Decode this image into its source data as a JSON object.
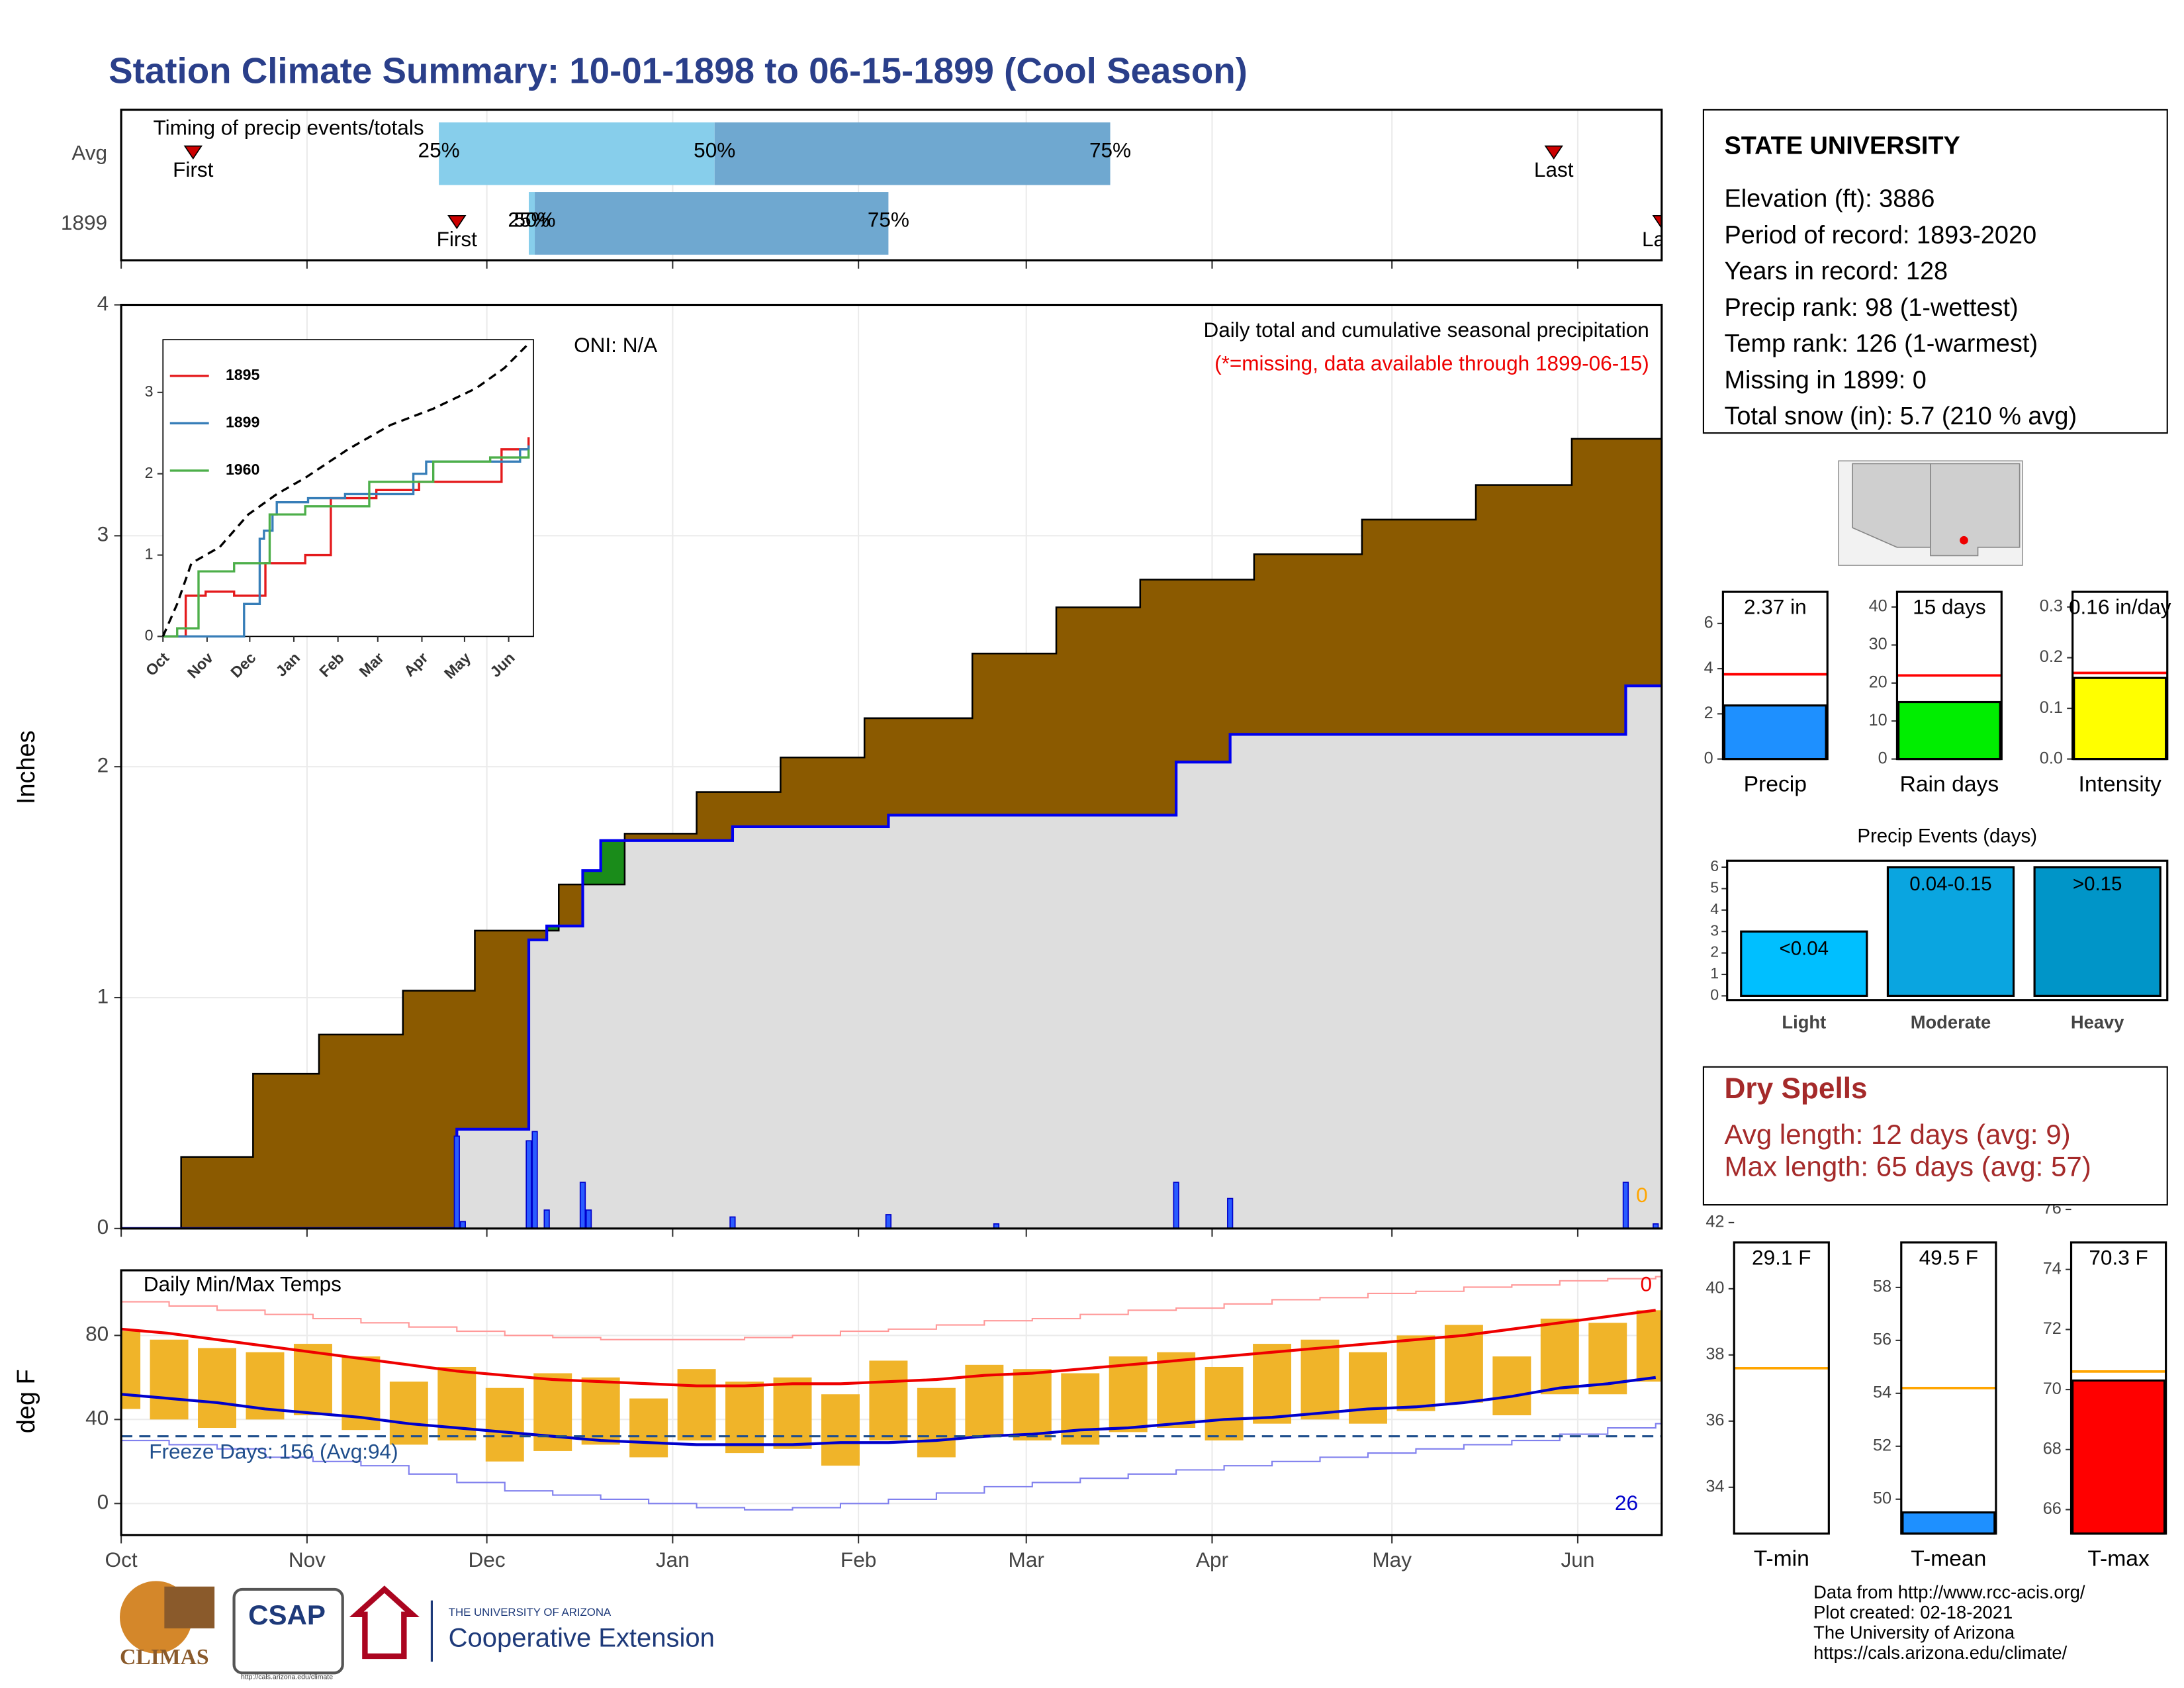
{
  "title": "Station Climate Summary: 10-01-1898 to 06-15-1899 (Cool Season)",
  "chart_data": [
    {
      "type": "timing",
      "title": "Timing of precip events/totals",
      "categories": [
        "Avg",
        "1899"
      ],
      "series": [
        {
          "name": "First",
          "color": "#cc0000",
          "values": [
            12,
            56
          ]
        },
        {
          "name": "25%",
          "color": "#87ceeb",
          "values": [
            53,
            68
          ]
        },
        {
          "name": "50%",
          "color": "#6fa8d0",
          "values": [
            99,
            69
          ]
        },
        {
          "name": "75%",
          "color": "#6fa8d0",
          "values": [
            165,
            128
          ]
        },
        {
          "name": "Last",
          "color": "#cc0000",
          "values": [
            239,
            257
          ]
        }
      ],
      "xlim": [
        0,
        257
      ],
      "xticks": [
        0,
        31,
        61,
        92,
        123,
        151,
        182,
        212,
        243
      ],
      "grid": true
    },
    {
      "type": "cumulative_precip",
      "ylabel": "Inches",
      "oni": "ONI: N/A",
      "subtitle": "Daily total and cumulative seasonal precipitation",
      "note": "(*=missing, data available through 1899-06-15)",
      "missing_days": 0,
      "xlim": [
        0,
        257
      ],
      "xticks": [
        0,
        31,
        61,
        92,
        123,
        151,
        182,
        212,
        243
      ],
      "ylim": [
        0,
        4
      ],
      "yticks": [
        0,
        1,
        2,
        3,
        4
      ],
      "grid": true,
      "average": {
        "color": "#8b5a00",
        "x": [
          0,
          10,
          22,
          33,
          47,
          59,
          73,
          84,
          96,
          110,
          124,
          142,
          156,
          170,
          189,
          207,
          226,
          242,
          257
        ],
        "values": [
          0,
          0.31,
          0.67,
          0.84,
          1.03,
          1.29,
          1.49,
          1.71,
          1.89,
          2.04,
          2.21,
          2.49,
          2.69,
          2.81,
          2.92,
          3.07,
          3.22,
          3.42,
          3.65
        ]
      },
      "cumulative": {
        "color": "#0000ee",
        "fill": "#dedede",
        "above_color": "#1a8c1a",
        "x": [
          0,
          56,
          68,
          71,
          77,
          80,
          102,
          128,
          176,
          185,
          251
        ],
        "values": [
          0,
          0.43,
          1.25,
          1.31,
          1.55,
          1.68,
          1.74,
          1.79,
          2.02,
          2.14,
          2.35
        ]
      },
      "daily": {
        "color": "#2a5cff",
        "x": [
          56,
          57,
          68,
          69,
          71,
          77,
          78,
          102,
          128,
          146,
          176,
          185,
          251,
          256
        ],
        "values": [
          0.4,
          0.03,
          0.38,
          0.42,
          0.08,
          0.2,
          0.08,
          0.05,
          0.06,
          0.02,
          0.2,
          0.13,
          0.2,
          0.02
        ]
      }
    },
    {
      "type": "inset_lines",
      "xlim": [
        0,
        257
      ],
      "xticks": [
        {
          "value": 0,
          "label": "Oct"
        },
        {
          "value": 31,
          "label": "Nov"
        },
        {
          "value": 61,
          "label": "Dec"
        },
        {
          "value": 92,
          "label": "Jan"
        },
        {
          "value": 123,
          "label": "Feb"
        },
        {
          "value": 151,
          "label": "Mar"
        },
        {
          "value": 182,
          "label": "Apr"
        },
        {
          "value": 212,
          "label": "May"
        },
        {
          "value": 243,
          "label": "Jun"
        }
      ],
      "ylim": [
        0,
        3.7
      ],
      "yticks": [
        0,
        1,
        2,
        3
      ],
      "average": {
        "color": "#000000",
        "x": [
          0,
          10,
          20,
          40,
          60,
          80,
          100,
          130,
          160,
          190,
          220,
          240,
          257
        ],
        "values": [
          0,
          0.4,
          0.9,
          1.1,
          1.5,
          1.75,
          1.95,
          2.3,
          2.6,
          2.8,
          3.05,
          3.3,
          3.6
        ]
      },
      "series": [
        {
          "name": "1895",
          "color": "#e41a1c",
          "x": [
            0,
            15,
            16,
            30,
            50,
            72,
            100,
            118,
            150,
            180,
            235,
            238,
            257
          ],
          "values": [
            0,
            0,
            0.5,
            0.55,
            0.5,
            0.9,
            1.0,
            1.7,
            1.8,
            1.9,
            1.9,
            2.3,
            2.45
          ]
        },
        {
          "name": "1899",
          "color": "#377eb8",
          "x": [
            0,
            56,
            57,
            68,
            71,
            77,
            80,
            102,
            128,
            176,
            185,
            251,
            257
          ],
          "values": [
            0,
            0,
            0.4,
            1.2,
            1.3,
            1.5,
            1.65,
            1.7,
            1.75,
            2.0,
            2.15,
            2.3,
            2.35
          ]
        },
        {
          "name": "1960",
          "color": "#4daf4a",
          "x": [
            0,
            10,
            25,
            50,
            70,
            75,
            100,
            145,
            190,
            230,
            257
          ],
          "values": [
            0,
            0.1,
            0.8,
            0.9,
            0.9,
            1.5,
            1.6,
            1.9,
            2.15,
            2.2,
            2.3
          ]
        }
      ]
    },
    {
      "type": "temps",
      "title": "Daily Min/Max Temps",
      "ylabel": "deg F",
      "xlim": [
        0,
        257
      ],
      "xticks": [
        {
          "value": 0,
          "label": "Oct"
        },
        {
          "value": 31,
          "label": "Nov"
        },
        {
          "value": 61,
          "label": "Dec"
        },
        {
          "value": 92,
          "label": "Jan"
        },
        {
          "value": 123,
          "label": "Feb"
        },
        {
          "value": 151,
          "label": "Mar"
        },
        {
          "value": 182,
          "label": "Apr"
        },
        {
          "value": 212,
          "label": "May"
        },
        {
          "value": 243,
          "label": "Jun"
        }
      ],
      "ylim": [
        -15,
        111
      ],
      "yticks": [
        0,
        40,
        80
      ],
      "grid": true,
      "x": [
        0,
        8,
        16,
        24,
        32,
        40,
        48,
        56,
        64,
        72,
        80,
        88,
        96,
        104,
        112,
        120,
        128,
        136,
        144,
        152,
        160,
        168,
        176,
        184,
        192,
        200,
        208,
        216,
        224,
        232,
        240,
        248,
        256
      ],
      "observed_max": [
        82,
        78,
        74,
        72,
        76,
        70,
        58,
        65,
        55,
        62,
        60,
        50,
        64,
        58,
        60,
        52,
        68,
        55,
        66,
        64,
        62,
        70,
        72,
        65,
        76,
        78,
        72,
        80,
        85,
        70,
        88,
        86,
        92
      ],
      "observed_min": [
        45,
        40,
        36,
        40,
        42,
        35,
        28,
        30,
        20,
        25,
        28,
        22,
        30,
        24,
        26,
        18,
        30,
        22,
        32,
        30,
        28,
        34,
        36,
        30,
        38,
        40,
        38,
        44,
        48,
        42,
        52,
        52,
        58
      ],
      "avg_max": [
        83,
        81,
        78,
        75,
        72,
        69,
        66,
        63,
        61,
        59,
        58,
        57,
        56,
        56,
        57,
        57,
        58,
        59,
        61,
        62,
        64,
        66,
        68,
        70,
        72,
        74,
        76,
        78,
        80,
        83,
        86,
        89,
        92
      ],
      "avg_min": [
        52,
        50,
        48,
        45,
        43,
        41,
        38,
        36,
        34,
        32,
        30,
        29,
        28,
        28,
        28,
        29,
        29,
        30,
        32,
        33,
        35,
        36,
        38,
        40,
        41,
        43,
        45,
        46,
        48,
        51,
        55,
        57,
        60
      ],
      "record_max": [
        96,
        94,
        92,
        90,
        88,
        86,
        84,
        82,
        80,
        79,
        78,
        78,
        78,
        79,
        80,
        82,
        83,
        85,
        87,
        88,
        90,
        92,
        93,
        95,
        97,
        98,
        100,
        101,
        103,
        104,
        106,
        107,
        108
      ],
      "record_min": [
        30,
        28,
        26,
        22,
        20,
        18,
        14,
        10,
        6,
        4,
        2,
        0,
        -2,
        -3,
        -2,
        0,
        2,
        5,
        8,
        10,
        12,
        14,
        16,
        18,
        20,
        22,
        24,
        26,
        28,
        30,
        33,
        36,
        38
      ],
      "colors": {
        "bar": "#f0b429",
        "avg_max": "#ee0000",
        "avg_min": "#0000cc",
        "record_max": "#ff9999",
        "record_min": "#8080ee",
        "freeze": "#1f4e8c"
      },
      "freeze": {
        "value": 32,
        "label": "Freeze Days: 156 (Avg:94)"
      },
      "record_high_count": 0,
      "record_low_count": 26
    },
    {
      "type": "mini_bar",
      "label": "Precip",
      "value": 2.37,
      "value_label": "2.37 in",
      "average": 3.75,
      "color": "#1e90ff",
      "avg_color": "#ff0000",
      "ylim": [
        0,
        7.4
      ],
      "yticks": [
        0,
        2,
        4,
        6
      ]
    },
    {
      "type": "mini_bar",
      "label": "Rain days",
      "value": 15,
      "value_label": "15 days",
      "average": 22,
      "color": "#00ee00",
      "avg_color": "#ff0000",
      "ylim": [
        0,
        44
      ],
      "yticks": [
        0,
        10,
        20,
        30,
        40
      ]
    },
    {
      "type": "mini_bar",
      "label": "Intensity",
      "value": 0.16,
      "value_label": "0.16 in/day",
      "average": 0.17,
      "color": "#ffff00",
      "avg_color": "#ff0000",
      "ylim": [
        0,
        0.33
      ],
      "yticks": [
        {
          "value": 0,
          "label": "0.0"
        },
        0.1,
        0.2,
        0.3
      ]
    },
    {
      "type": "bar",
      "title": "Precip Events (days)",
      "categories": [
        "Light",
        "Moderate",
        "Heavy"
      ],
      "values": [
        3,
        6,
        6
      ],
      "bar_labels": [
        "<0.04",
        "0.04-0.15",
        ">0.15"
      ],
      "colors": [
        "#00bfff",
        "#0aa5e0",
        "#0095c8"
      ],
      "ylim": [
        0,
        6.3
      ],
      "yticks": [
        0,
        1,
        2,
        3,
        4,
        5,
        6
      ]
    },
    {
      "type": "mini_bar",
      "label": "T-min",
      "value": 29.1,
      "value_label": "29.1 F",
      "average": 37.6,
      "color": "#1e90ff",
      "avg_color": "#ffa500",
      "ylim": [
        32.6,
        41.4
      ],
      "yticks": [
        34,
        36,
        38,
        40,
        42
      ]
    },
    {
      "type": "mini_bar",
      "label": "T-mean",
      "value": 49.5,
      "value_label": "49.5 F",
      "average": 54.2,
      "color": "#1e90ff",
      "avg_color": "#ffa500",
      "ylim": [
        48.7,
        59.7
      ],
      "yticks": [
        50,
        52,
        54,
        56,
        58
      ]
    },
    {
      "type": "mini_bar",
      "label": "T-max",
      "value": 70.3,
      "value_label": "70.3 F",
      "average": 70.6,
      "color": "#ff0000",
      "avg_color": "#ffa500",
      "ylim": [
        65.2,
        74.9
      ],
      "yticks": [
        66,
        68,
        70,
        72,
        74,
        76
      ]
    }
  ],
  "station": {
    "title": "STATE UNIVERSITY",
    "lines": [
      "Elevation (ft): 3886",
      "Period of record: 1893-2020",
      "Years in record: 128",
      "Precip rank: 98 (1-wettest)",
      "Temp rank: 126 (1-warmest)",
      "Missing in 1899: 0",
      "Total snow (in): 5.7 (210 % avg)"
    ]
  },
  "dry_spells": {
    "title": "Dry Spells",
    "lines": [
      "Avg length: 12 days (avg: 9)",
      "Max length: 65 days (avg: 57)"
    ]
  },
  "footer": {
    "logos": [
      "CLIMAS",
      "CSAP",
      "THE UNIVERSITY OF ARIZONA",
      "Cooperative Extension"
    ],
    "csap_url": "http://cals.arizona.edu/climate",
    "credits": [
      "Data from http://www.rcc-acis.org/",
      "Plot created: 02-18-2021",
      "The University of Arizona",
      "https://cals.arizona.edu/climate/"
    ]
  }
}
